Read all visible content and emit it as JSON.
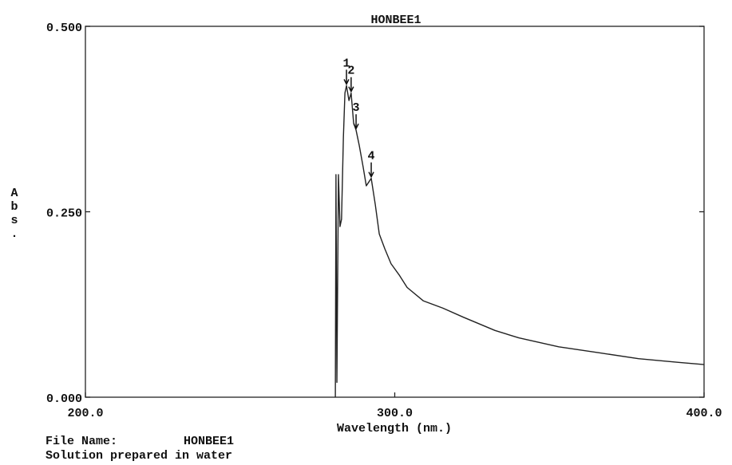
{
  "chart_data": {
    "type": "line",
    "title": "HONBEE1",
    "xlabel": "Wavelength (nm.)",
    "ylabel": "Abs.",
    "x": [
      280.8,
      281.0,
      281.3,
      281.8,
      282.3,
      282.8,
      283.4,
      283.9,
      284.4,
      285.2,
      285.9,
      286.7,
      287.5,
      288.5,
      289.8,
      290.8,
      291.6,
      292.4,
      293.7,
      295.0,
      296.8,
      298.8,
      301.4,
      304.0,
      309.2,
      315.6,
      322.1,
      332.4,
      340.1,
      353.0,
      365.9,
      378.8,
      391.7,
      400.0
    ],
    "series": [
      {
        "color": "#222222",
        "values": [
          0,
          0.3,
          0.02,
          0.3,
          0.23,
          0.24,
          0.35,
          0.41,
          0.42,
          0.4,
          0.41,
          0.37,
          0.36,
          0.34,
          0.31,
          0.285,
          0.29,
          0.295,
          0.26,
          0.22,
          0.2,
          0.18,
          0.165,
          0.148,
          0.13,
          0.12,
          0.108,
          0.09,
          0.08,
          0.068,
          0.06,
          0.052,
          0.047,
          0.044
        ]
      }
    ],
    "xlim": [
      200,
      400
    ],
    "ylim": [
      0,
      0.5
    ],
    "xticks": [
      {
        "value": 200,
        "label": "200.0"
      },
      {
        "value": 300,
        "label": "300.0"
      },
      {
        "value": 400,
        "label": "400.0"
      }
    ],
    "yticks": [
      {
        "value": 0,
        "label": "0.000"
      },
      {
        "value": 0.25,
        "label": "0.250"
      },
      {
        "value": 0.5,
        "label": "0.500"
      }
    ],
    "annotations": [
      {
        "label": "1",
        "x": 284.4,
        "y": 0.42
      },
      {
        "label": "2",
        "x": 285.9,
        "y": 0.41
      },
      {
        "label": "3",
        "x": 287.5,
        "y": 0.36
      },
      {
        "label": "4",
        "x": 292.4,
        "y": 0.295
      }
    ]
  },
  "footer": {
    "file_name_label": "File Name:",
    "file_name": "HONBEE1",
    "note": "Solution prepared in water"
  }
}
